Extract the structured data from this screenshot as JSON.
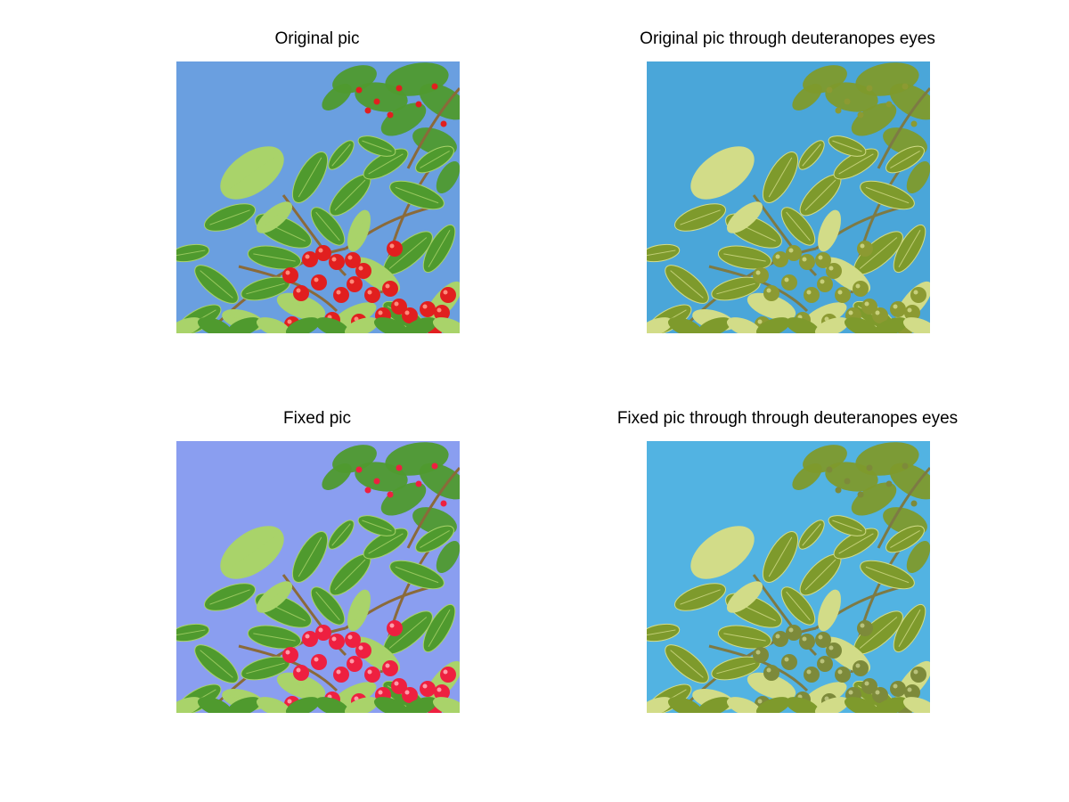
{
  "panels": [
    {
      "title": "Original pic",
      "colors": {
        "sky": "#6a9fe0",
        "leaf": "#4f9a2e",
        "leaf_light": "#a9d36a",
        "stem": "#8a6a3a",
        "berry": "#e11f1f",
        "berry_hi": "#ff8a7a"
      }
    },
    {
      "title": "Original pic through deuteranopes eyes",
      "colors": {
        "sky": "#4aa6d9",
        "leaf": "#7e9a2c",
        "leaf_light": "#d2dc88",
        "stem": "#7d7a44",
        "berry": "#8c9a32",
        "berry_hi": "#c7cf7a"
      }
    },
    {
      "title": "Fixed pic",
      "colors": {
        "sky": "#8a9ef0",
        "leaf": "#4f9a2e",
        "leaf_light": "#a9d36a",
        "stem": "#8a6a3a",
        "berry": "#ee2040",
        "berry_hi": "#ff9aa8"
      }
    },
    {
      "title": "Fixed pic through through deuteranopes eyes",
      "colors": {
        "sky": "#52b3e2",
        "leaf": "#7e9a2c",
        "leaf_light": "#d2dc88",
        "stem": "#7d7a44",
        "berry": "#7d8a3a",
        "berry_hi": "#b9c27a"
      }
    }
  ]
}
